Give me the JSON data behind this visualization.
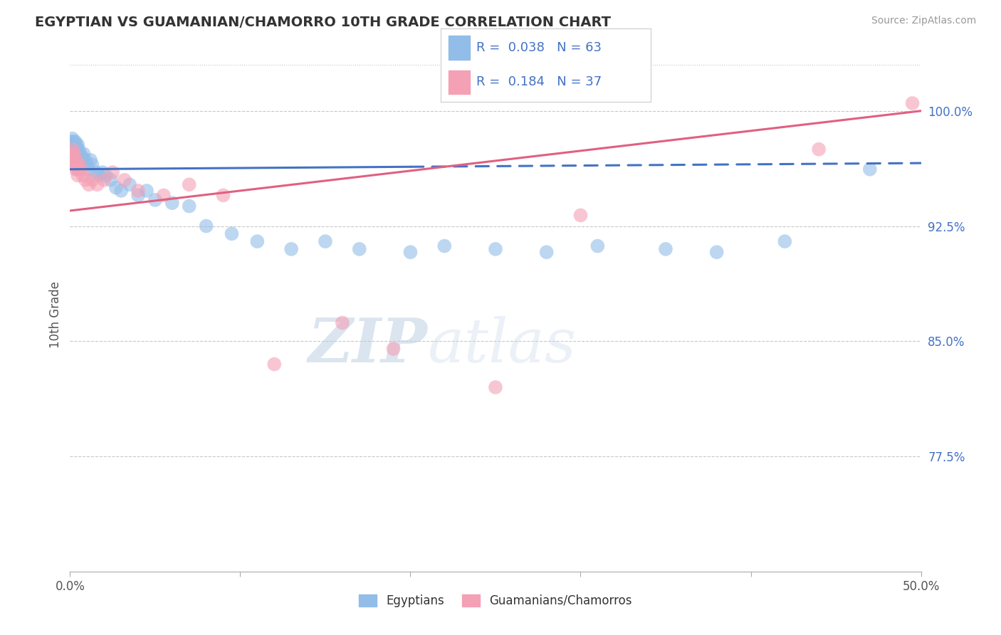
{
  "title": "EGYPTIAN VS GUAMANIAN/CHAMORRO 10TH GRADE CORRELATION CHART",
  "source_text": "Source: ZipAtlas.com",
  "ylabel": "10th Grade",
  "xlim": [
    0.0,
    50.0
  ],
  "ylim": [
    70.0,
    103.5
  ],
  "yticks": [
    77.5,
    85.0,
    92.5,
    100.0
  ],
  "yticklabels": [
    "77.5%",
    "85.0%",
    "92.5%",
    "100.0%"
  ],
  "blue_color": "#92BDE8",
  "pink_color": "#F4A0B5",
  "blue_line_color": "#4472C4",
  "pink_line_color": "#E06080",
  "legend_blue_text": "R =  0.038   N = 63",
  "legend_pink_text": "R =  0.184   N = 37",
  "legend_text_color": "#4472C4",
  "watermark_text": "ZIPatlas",
  "background_color": "#ffffff",
  "grid_color": "#c8c8c8",
  "blue_x": [
    0.05,
    0.07,
    0.08,
    0.1,
    0.12,
    0.13,
    0.15,
    0.17,
    0.18,
    0.2,
    0.22,
    0.25,
    0.28,
    0.3,
    0.32,
    0.35,
    0.38,
    0.4,
    0.42,
    0.45,
    0.48,
    0.5,
    0.55,
    0.58,
    0.6,
    0.65,
    0.7,
    0.75,
    0.8,
    0.85,
    0.9,
    1.0,
    1.1,
    1.2,
    1.3,
    1.5,
    1.7,
    1.9,
    2.1,
    2.4,
    2.7,
    3.0,
    3.5,
    4.0,
    4.5,
    5.0,
    6.0,
    7.0,
    8.0,
    9.5,
    11.0,
    13.0,
    15.0,
    17.0,
    20.0,
    22.0,
    25.0,
    28.0,
    31.0,
    35.0,
    38.0,
    42.0,
    47.0
  ],
  "blue_y": [
    97.2,
    97.5,
    98.0,
    97.8,
    97.5,
    98.2,
    97.8,
    97.5,
    97.2,
    98.0,
    97.8,
    97.5,
    97.0,
    98.0,
    97.5,
    97.8,
    97.2,
    97.0,
    97.5,
    97.8,
    97.2,
    97.5,
    97.0,
    96.8,
    97.2,
    96.5,
    97.0,
    96.8,
    97.2,
    96.5,
    96.8,
    96.5,
    96.2,
    96.8,
    96.5,
    96.0,
    95.8,
    96.0,
    95.8,
    95.5,
    95.0,
    94.8,
    95.2,
    94.5,
    94.8,
    94.2,
    94.0,
    93.8,
    92.5,
    92.0,
    91.5,
    91.0,
    91.5,
    91.0,
    90.8,
    91.2,
    91.0,
    90.8,
    91.2,
    91.0,
    90.8,
    91.5,
    96.2
  ],
  "pink_x": [
    0.05,
    0.08,
    0.1,
    0.13,
    0.15,
    0.18,
    0.2,
    0.23,
    0.25,
    0.28,
    0.32,
    0.35,
    0.38,
    0.42,
    0.45,
    0.5,
    0.55,
    0.65,
    0.75,
    0.9,
    1.1,
    1.3,
    1.6,
    2.0,
    2.5,
    3.2,
    4.0,
    5.5,
    7.0,
    9.0,
    12.0,
    16.0,
    19.0,
    25.0,
    30.0,
    44.0,
    49.5
  ],
  "pink_y": [
    97.0,
    96.8,
    97.2,
    96.8,
    97.5,
    97.0,
    96.5,
    96.8,
    97.2,
    96.5,
    96.2,
    96.8,
    96.5,
    96.2,
    95.8,
    96.2,
    96.5,
    96.2,
    95.8,
    95.5,
    95.2,
    95.5,
    95.2,
    95.5,
    96.0,
    95.5,
    94.8,
    94.5,
    95.2,
    94.5,
    83.5,
    86.2,
    84.5,
    82.0,
    93.2,
    97.5,
    100.5
  ],
  "blue_solid_end": 20.0,
  "blue_line_intercept": 96.2,
  "blue_line_slope": 0.008,
  "pink_line_intercept": 93.5,
  "pink_line_slope": 0.13
}
